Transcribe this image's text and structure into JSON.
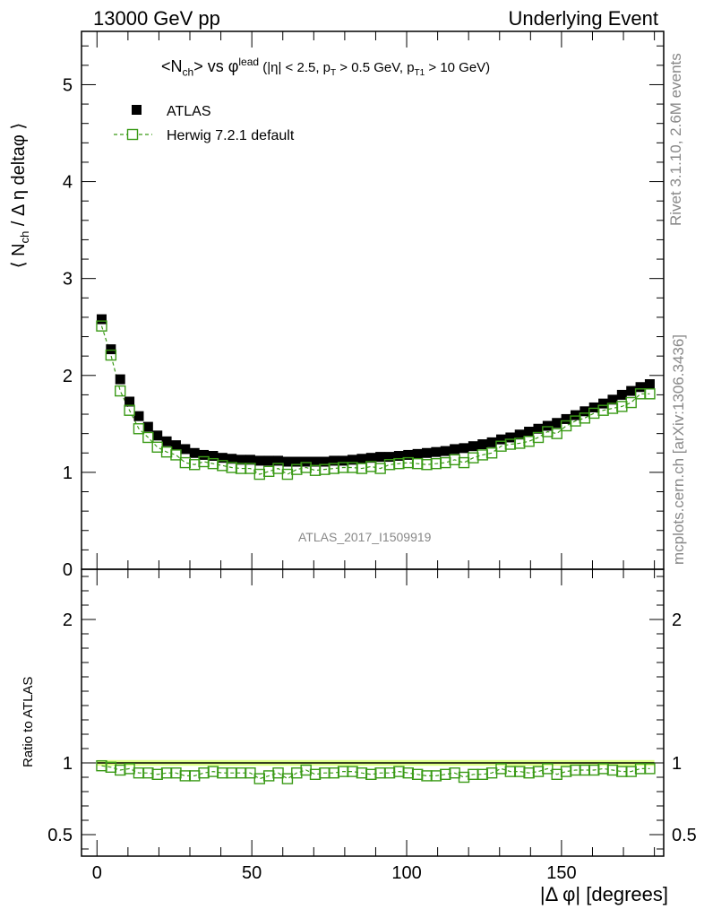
{
  "header": {
    "left": "13000 GeV pp",
    "right": "Underlying Event"
  },
  "watermarks": {
    "rivet": "Rivet 3.1.10,  2.6M events",
    "mcplots": "mcplots.cern.ch [arXiv:1306.3436]",
    "analysis": "ATLAS_2017_I1509919"
  },
  "colors": {
    "data": "#000000",
    "mc": "#3a9a16",
    "band": "#ddff88",
    "watermark": "#888888"
  },
  "chart_data": [
    {
      "type": "scatter",
      "title": "<N_ch> vs φ^lead (|η| < 2.5, p_T > 0.5 GeV, p_T1 > 10 GeV)",
      "ylabel": "⟨ N_ch / Δ η deltaφ ⟩",
      "xlabel": "",
      "xlim": [
        -5,
        183
      ],
      "ylim": [
        0,
        5.55
      ],
      "x_ticks": [
        0,
        50,
        100,
        150
      ],
      "y_ticks": [
        1,
        2,
        3,
        4,
        5
      ],
      "legend_position": "top-left",
      "x": [
        1.5,
        4.5,
        7.5,
        10.5,
        13.5,
        16.5,
        19.5,
        22.5,
        25.5,
        28.5,
        31.5,
        34.5,
        37.5,
        40.5,
        43.5,
        46.5,
        49.5,
        52.5,
        55.5,
        58.5,
        61.5,
        64.5,
        67.5,
        70.5,
        73.5,
        76.5,
        79.5,
        82.5,
        85.5,
        88.5,
        91.5,
        94.5,
        97.5,
        100.5,
        103.5,
        106.5,
        109.5,
        112.5,
        115.5,
        118.5,
        121.5,
        124.5,
        127.5,
        130.5,
        133.5,
        136.5,
        139.5,
        142.5,
        145.5,
        148.5,
        151.5,
        154.5,
        157.5,
        160.5,
        163.5,
        166.5,
        169.5,
        172.5,
        175.5,
        178.5
      ],
      "series": [
        {
          "name": "ATLAS",
          "marker": "filled-square",
          "values": [
            2.58,
            2.27,
            1.96,
            1.73,
            1.58,
            1.47,
            1.38,
            1.32,
            1.28,
            1.24,
            1.2,
            1.18,
            1.17,
            1.15,
            1.14,
            1.13,
            1.13,
            1.12,
            1.12,
            1.12,
            1.11,
            1.11,
            1.11,
            1.11,
            1.11,
            1.12,
            1.12,
            1.13,
            1.14,
            1.15,
            1.16,
            1.16,
            1.17,
            1.18,
            1.19,
            1.2,
            1.21,
            1.22,
            1.24,
            1.25,
            1.27,
            1.29,
            1.31,
            1.34,
            1.36,
            1.39,
            1.42,
            1.45,
            1.48,
            1.51,
            1.55,
            1.59,
            1.63,
            1.67,
            1.71,
            1.75,
            1.8,
            1.84,
            1.88,
            1.91
          ]
        },
        {
          "name": "Herwig 7.2.1 default",
          "marker": "open-square",
          "line": "dashed",
          "values": [
            2.51,
            2.21,
            1.84,
            1.64,
            1.45,
            1.36,
            1.26,
            1.21,
            1.18,
            1.1,
            1.08,
            1.11,
            1.09,
            1.07,
            1.05,
            1.04,
            1.04,
            0.98,
            1.01,
            1.04,
            0.98,
            1.03,
            1.05,
            1.02,
            1.03,
            1.04,
            1.05,
            1.05,
            1.04,
            1.06,
            1.04,
            1.08,
            1.09,
            1.1,
            1.09,
            1.08,
            1.09,
            1.1,
            1.13,
            1.1,
            1.15,
            1.18,
            1.2,
            1.27,
            1.29,
            1.3,
            1.32,
            1.36,
            1.42,
            1.4,
            1.48,
            1.53,
            1.56,
            1.61,
            1.64,
            1.66,
            1.68,
            1.72,
            1.81,
            1.81
          ]
        }
      ]
    },
    {
      "type": "scatter",
      "title": "",
      "ylabel": "Ratio to ATLAS",
      "xlabel": "|Δ φ| [degrees]",
      "xlim": [
        -5,
        183
      ],
      "ylim": [
        0.35,
        2.35
      ],
      "x_ticks": [
        0,
        50,
        100,
        150
      ],
      "y_ticks": [
        0.5,
        1,
        2
      ],
      "reference_line": 1,
      "band_halfwidth": 0.02,
      "series": [
        {
          "name": "Herwig 7.2.1 default",
          "marker": "open-square",
          "line": "dashed",
          "values": [
            0.98,
            0.97,
            0.95,
            0.96,
            0.93,
            0.93,
            0.92,
            0.93,
            0.93,
            0.91,
            0.91,
            0.93,
            0.94,
            0.93,
            0.93,
            0.93,
            0.93,
            0.89,
            0.91,
            0.93,
            0.89,
            0.93,
            0.95,
            0.92,
            0.93,
            0.93,
            0.94,
            0.94,
            0.93,
            0.92,
            0.93,
            0.93,
            0.94,
            0.93,
            0.92,
            0.91,
            0.91,
            0.92,
            0.93,
            0.9,
            0.92,
            0.92,
            0.93,
            0.96,
            0.94,
            0.94,
            0.93,
            0.94,
            0.96,
            0.92,
            0.94,
            0.95,
            0.95,
            0.95,
            0.96,
            0.95,
            0.94,
            0.94,
            0.96,
            0.96
          ]
        }
      ]
    }
  ]
}
